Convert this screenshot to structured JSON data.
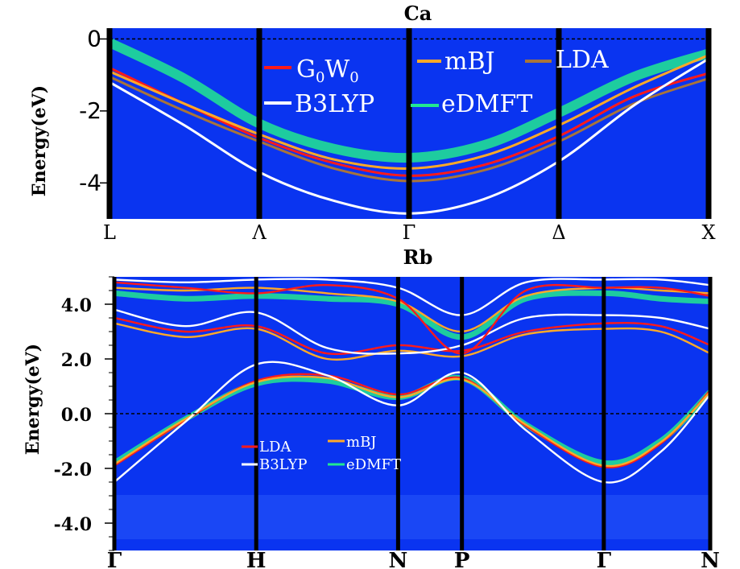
{
  "colors": {
    "background": "#0a34f0",
    "G0W0": "#ff1a1a",
    "LDA_ca": "#a8743a",
    "LDA_rb": "#ff1a1a",
    "mBJ": "#ffa928",
    "B3LYP": "#ffffff",
    "eDMFT": "#22e890"
  },
  "chart_data": [
    {
      "type": "line",
      "title": "Ca",
      "ylabel": "Energy(eV)",
      "xlabel": "",
      "ylim": [
        -5,
        0.3
      ],
      "yticks": [
        0,
        -2,
        -4
      ],
      "ytick_labels": [
        "0",
        "-2",
        "-4"
      ],
      "kpoints": [
        "L",
        "Λ",
        "Γ",
        "Δ",
        "X"
      ],
      "kpos": [
        0,
        1,
        2,
        3,
        4
      ],
      "fermi_level": 0,
      "legend": [
        {
          "label": "G",
          "sub": "0",
          "label2": "W",
          "sub2": "0",
          "color_key": "G0W0"
        },
        {
          "label": "mBJ",
          "color_key": "mBJ"
        },
        {
          "label": "LDA",
          "color_key": "LDA_ca"
        },
        {
          "label": "B3LYP",
          "color_key": "B3LYP"
        },
        {
          "label": "eDMFT",
          "color_key": "eDMFT"
        }
      ],
      "legend_position": "top-center",
      "series": [
        {
          "name": "eDMFT",
          "x": [
            0,
            0.5,
            1,
            1.5,
            2,
            2.5,
            3,
            3.5,
            4
          ],
          "values": [
            -0.1,
            -1.1,
            -2.35,
            -3.05,
            -3.3,
            -2.95,
            -2.05,
            -1.05,
            -0.4
          ]
        },
        {
          "name": "G0W0",
          "x": [
            0,
            0.5,
            1,
            1.5,
            2,
            2.5,
            3,
            3.5,
            4
          ],
          "values": [
            -0.8,
            -1.8,
            -2.75,
            -3.45,
            -3.8,
            -3.5,
            -2.7,
            -1.6,
            -0.95
          ]
        },
        {
          "name": "mBJ",
          "x": [
            0,
            0.5,
            1,
            1.5,
            2,
            2.5,
            3,
            3.5,
            4
          ],
          "values": [
            -0.9,
            -1.8,
            -2.65,
            -3.35,
            -3.6,
            -3.25,
            -2.4,
            -1.35,
            -0.45
          ]
        },
        {
          "name": "LDA",
          "x": [
            0,
            0.5,
            1,
            1.5,
            2,
            2.5,
            3,
            3.5,
            4
          ],
          "values": [
            -1.05,
            -2.0,
            -2.85,
            -3.6,
            -3.95,
            -3.65,
            -2.85,
            -1.8,
            -1.1
          ]
        },
        {
          "name": "B3LYP",
          "x": [
            0,
            0.5,
            1,
            1.5,
            2,
            2.5,
            3,
            3.5,
            4
          ],
          "values": [
            -1.2,
            -2.4,
            -3.7,
            -4.5,
            -4.85,
            -4.45,
            -3.4,
            -1.85,
            -0.55
          ]
        }
      ]
    },
    {
      "type": "line",
      "title": "Rb",
      "ylabel": "Energy(eV)",
      "xlabel": "",
      "ylim": [
        -5,
        5
      ],
      "yticks": [
        4,
        2,
        0,
        -2,
        -4
      ],
      "ytick_labels": [
        "4.0",
        "2.0",
        "0.0",
        "-2.0",
        "-4.0"
      ],
      "kpoints": [
        "Γ",
        "H",
        "N",
        "P",
        "Γ",
        "N"
      ],
      "kpos": [
        0,
        1,
        2,
        2.45,
        3.45,
        4.2
      ],
      "fermi_level": 0,
      "legend": [
        {
          "label": "LDA",
          "color_key": "LDA_rb"
        },
        {
          "label": "mBJ",
          "color_key": "mBJ"
        },
        {
          "label": "B3LYP",
          "color_key": "B3LYP"
        },
        {
          "label": "eDMFT",
          "color_key": "eDMFT"
        }
      ],
      "legend_position": "lower-center",
      "series": [
        {
          "name": "eDMFT",
          "x": [
            0,
            0.5,
            1,
            1.5,
            2,
            2.45,
            2.9,
            3.45,
            3.85,
            4.2
          ],
          "values": [
            -1.8,
            -0.2,
            1.1,
            1.2,
            0.6,
            1.3,
            -0.4,
            -1.8,
            -1.0,
            0.8
          ]
        },
        {
          "name": "LDA",
          "x": [
            0,
            0.5,
            1,
            1.5,
            2,
            2.45,
            2.9,
            3.45,
            3.85,
            4.2
          ],
          "values": [
            -1.9,
            -0.25,
            1.2,
            1.4,
            0.7,
            1.3,
            -0.45,
            -1.95,
            -1.1,
            0.85
          ]
        },
        {
          "name": "mBJ",
          "x": [
            0,
            0.5,
            1,
            1.5,
            2,
            2.45,
            2.9,
            3.45,
            3.85,
            4.2
          ],
          "values": [
            -1.85,
            -0.2,
            1.15,
            1.3,
            0.6,
            1.25,
            -0.4,
            -1.9,
            -1.05,
            0.8
          ]
        },
        {
          "name": "B3LYP",
          "x": [
            0,
            0.5,
            1,
            1.5,
            2,
            2.45,
            2.9,
            3.45,
            3.85,
            4.2
          ],
          "values": [
            -2.5,
            -0.3,
            1.8,
            1.4,
            0.3,
            1.5,
            -0.6,
            -2.5,
            -1.4,
            0.7
          ]
        },
        {
          "name": "LDA",
          "x": [
            0,
            0.5,
            1,
            1.5,
            2,
            2.45,
            2.9,
            3.45,
            3.85,
            4.2
          ],
          "values": [
            3.5,
            3.0,
            3.2,
            2.2,
            2.5,
            2.3,
            3.0,
            3.3,
            3.2,
            2.5
          ]
        },
        {
          "name": "mBJ",
          "x": [
            0,
            0.5,
            1,
            1.5,
            2,
            2.45,
            2.9,
            3.45,
            3.85,
            4.2
          ],
          "values": [
            3.3,
            2.8,
            3.1,
            2.0,
            2.3,
            2.1,
            2.9,
            3.1,
            3.0,
            2.2
          ]
        },
        {
          "name": "B3LYP",
          "x": [
            0,
            0.5,
            1,
            1.5,
            2,
            2.45,
            2.9,
            3.45,
            3.85,
            4.2
          ],
          "values": [
            3.8,
            3.2,
            3.7,
            2.4,
            2.2,
            2.5,
            3.5,
            3.6,
            3.5,
            3.1
          ]
        },
        {
          "name": "eDMFT",
          "x": [
            0,
            0.5,
            1,
            1.5,
            2,
            2.45,
            2.9,
            3.45,
            3.85,
            4.2
          ],
          "values": [
            4.4,
            4.2,
            4.3,
            4.2,
            4.0,
            2.8,
            4.2,
            4.4,
            4.2,
            4.1
          ]
        },
        {
          "name": "mBJ",
          "x": [
            0,
            0.5,
            1,
            1.5,
            2,
            2.45,
            2.9,
            3.45,
            3.85,
            4.2
          ],
          "values": [
            4.6,
            4.5,
            4.6,
            4.4,
            4.1,
            3.0,
            4.3,
            4.6,
            4.5,
            4.4
          ]
        },
        {
          "name": "LDA",
          "x": [
            0,
            0.5,
            1,
            1.5,
            2,
            2.45,
            2.9,
            3.45,
            3.85,
            4.2
          ],
          "values": [
            4.8,
            4.6,
            4.4,
            4.7,
            4.2,
            2.2,
            4.5,
            4.6,
            4.6,
            4.3
          ]
        },
        {
          "name": "B3LYP",
          "x": [
            0,
            0.5,
            1,
            1.5,
            2,
            2.45,
            2.9,
            3.45,
            3.85,
            4.2
          ],
          "values": [
            4.9,
            4.8,
            4.9,
            4.9,
            4.6,
            3.6,
            4.8,
            4.9,
            4.9,
            4.7
          ]
        }
      ]
    }
  ]
}
